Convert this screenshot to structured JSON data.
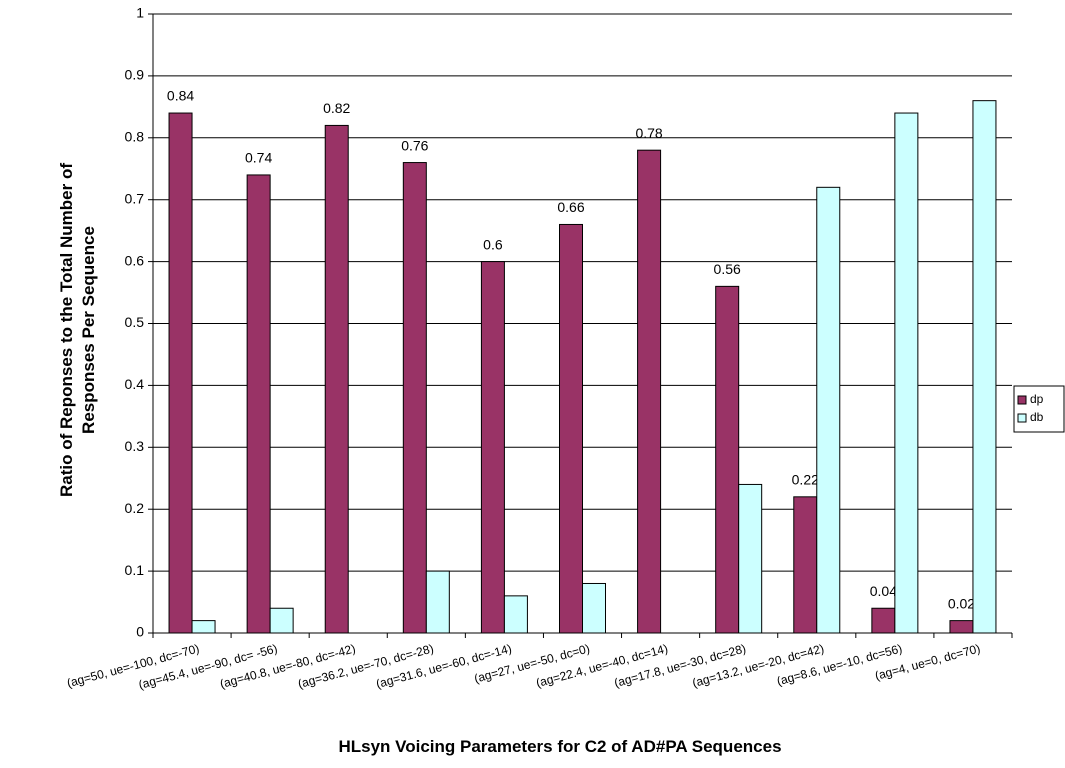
{
  "chart_data": {
    "type": "bar",
    "xlabel": "HLsyn Voicing Parameters for C2 of AD#PA Sequences",
    "ylabel": [
      "Ratio of Reponses to the Total Number of",
      "Responses Per Sequence"
    ],
    "categories": [
      "(ag=50, ue=-100, dc=-70)",
      "(ag=45.4, ue=-90, dc= -56)",
      "(ag=40.8, ue=-80, dc=-42)",
      "(ag=36.2, ue=-70, dc=-28)",
      "(ag=31.6, ue=-60, dc=-14)",
      "(ag=27, ue=-50, dc=0)",
      "(ag=22.4, ue=-40, dc=14)",
      "(ag=17.8, ue=-30, dc=28)",
      "(ag=13.2, ue=-20, dc=42)",
      "(ag=8.6, ue=-10, dc=56)",
      "(ag=4, ue=0, dc=70)"
    ],
    "series": [
      {
        "name": "dp",
        "color": "#993366",
        "values": [
          0.84,
          0.74,
          0.82,
          0.76,
          0.6,
          0.66,
          0.78,
          0.56,
          0.22,
          0.04,
          0.02
        ],
        "data_labels": true
      },
      {
        "name": "db",
        "color": "#ccffff",
        "values": [
          0.02,
          0.04,
          0,
          0.1,
          0.06,
          0.08,
          0,
          0.24,
          0.72,
          0.84,
          0.86
        ],
        "data_labels": false
      }
    ],
    "ylim": [
      0,
      1
    ],
    "yticks": [
      0,
      0.1,
      0.2,
      0.3,
      0.4,
      0.5,
      0.6,
      0.7,
      0.8,
      0.9,
      1
    ],
    "grid": true,
    "legend": "right"
  }
}
